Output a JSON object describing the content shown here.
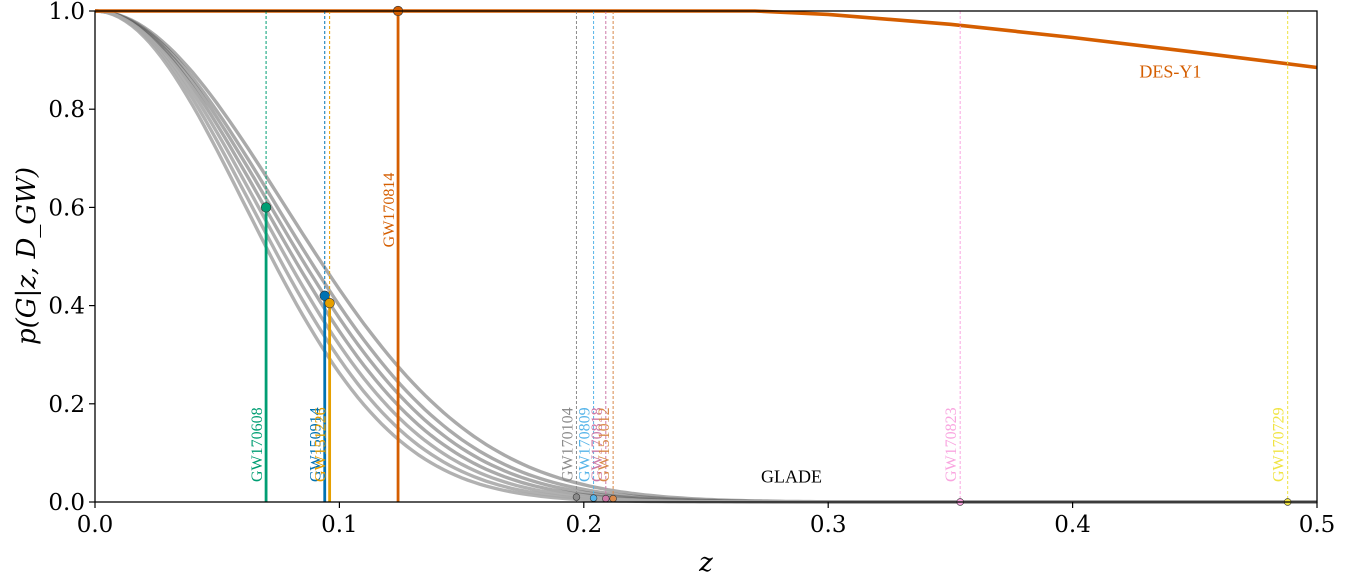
{
  "chart_data": {
    "type": "line",
    "xlabel": "z",
    "ylabel": "p(G|z, D_GW)",
    "xlim": [
      0.0,
      0.5
    ],
    "ylim": [
      0.0,
      1.0
    ],
    "x_ticks": [
      "0.0",
      "0.1",
      "0.2",
      "0.3",
      "0.4",
      "0.5"
    ],
    "y_ticks": [
      "0.0",
      "0.2",
      "0.4",
      "0.6",
      "0.8",
      "1.0"
    ],
    "grid": false,
    "annotations": [
      {
        "text": "DES-Y1",
        "x": 0.44,
        "y": 0.865,
        "color": "#d55e00"
      },
      {
        "text": "GLADE",
        "x": 0.285,
        "y": 0.04,
        "color": "#000000"
      }
    ],
    "glade_curves": [
      {
        "z50": 0.091,
        "width": 0.046
      },
      {
        "z50": 0.087,
        "width": 0.045
      },
      {
        "z50": 0.084,
        "width": 0.044
      },
      {
        "z50": 0.081,
        "width": 0.043
      },
      {
        "z50": 0.078,
        "width": 0.042
      },
      {
        "z50": 0.075,
        "width": 0.041
      },
      {
        "z50": 0.072,
        "width": 0.04
      }
    ],
    "des_curve": {
      "name": "DES-Y1",
      "color": "#d55e00",
      "x": [
        0.0,
        0.27,
        0.3,
        0.35,
        0.4,
        0.45,
        0.5
      ],
      "y": [
        1.0,
        1.0,
        0.993,
        0.973,
        0.946,
        0.916,
        0.885
      ]
    },
    "events": [
      {
        "name": "GW170608",
        "z": 0.07,
        "p": 0.6,
        "color": "#009e73",
        "kind": "glade"
      },
      {
        "name": "GW150914",
        "z": 0.094,
        "p": 0.42,
        "color": "#0072b2",
        "kind": "glade"
      },
      {
        "name": "GW151226",
        "z": 0.096,
        "p": 0.405,
        "color": "#e69f00",
        "kind": "glade"
      },
      {
        "name": "GW170814",
        "z": 0.124,
        "p": 1.0,
        "color": "#d55e00",
        "kind": "des"
      },
      {
        "name": "GW170104",
        "z": 0.197,
        "p": 0.01,
        "color": "#8c8c8c",
        "kind": "glade"
      },
      {
        "name": "GW170809",
        "z": 0.204,
        "p": 0.008,
        "color": "#56b4e9",
        "kind": "glade"
      },
      {
        "name": "GW170818",
        "z": 0.209,
        "p": 0.007,
        "color": "#cc79a7",
        "kind": "glade"
      },
      {
        "name": "GW151012",
        "z": 0.212,
        "p": 0.007,
        "color": "#d9894a",
        "kind": "glade"
      },
      {
        "name": "GW170823",
        "z": 0.354,
        "p": 0.0,
        "color": "#f9a6e0",
        "kind": "glade"
      },
      {
        "name": "GW170729",
        "z": 0.488,
        "p": 0.0,
        "color": "#f0e442",
        "kind": "glade"
      }
    ]
  }
}
